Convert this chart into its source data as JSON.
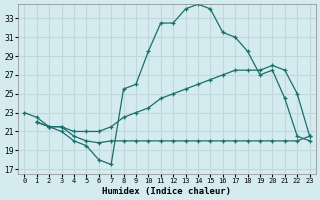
{
  "xlabel": "Humidex (Indice chaleur)",
  "bg_color": "#d4ecf0",
  "grid_color": "#c0d8dc",
  "line_color": "#1a6e6a",
  "xlim": [
    -0.5,
    23.5
  ],
  "ylim": [
    16.5,
    34.5
  ],
  "xticks": [
    0,
    1,
    2,
    3,
    4,
    5,
    6,
    7,
    8,
    9,
    10,
    11,
    12,
    13,
    14,
    15,
    16,
    17,
    18,
    19,
    20,
    21,
    22,
    23
  ],
  "yticks": [
    17,
    19,
    21,
    23,
    25,
    27,
    29,
    31,
    33
  ],
  "line1_x": [
    0,
    1,
    2,
    3,
    4,
    5,
    6,
    7,
    8,
    9,
    10,
    11,
    12,
    13,
    14,
    15,
    16,
    17,
    18,
    19,
    20,
    21,
    22,
    23
  ],
  "line1_y": [
    23.0,
    22.5,
    21.5,
    21.0,
    20.0,
    19.5,
    18.0,
    17.5,
    25.5,
    26.0,
    29.5,
    32.5,
    32.5,
    34.0,
    34.5,
    34.0,
    31.5,
    31.0,
    29.5,
    27.0,
    27.5,
    24.5,
    20.5,
    20.0
  ],
  "line2_x": [
    1,
    2,
    3,
    4,
    5,
    6,
    7,
    8,
    9,
    10,
    11,
    12,
    13,
    14,
    15,
    16,
    17,
    18,
    19,
    20,
    21,
    22,
    23
  ],
  "line2_y": [
    22.0,
    21.5,
    21.5,
    21.0,
    21.0,
    21.0,
    21.5,
    22.5,
    23.0,
    23.5,
    24.5,
    25.0,
    25.5,
    26.0,
    26.5,
    27.0,
    27.5,
    27.5,
    27.5,
    28.0,
    27.5,
    25.0,
    20.5
  ],
  "line3_x": [
    1,
    2,
    3,
    4,
    5,
    6,
    7,
    8,
    9,
    10,
    11,
    12,
    13,
    14,
    15,
    16,
    17,
    18,
    19,
    20,
    21,
    22,
    23
  ],
  "line3_y": [
    22.0,
    21.5,
    21.5,
    20.5,
    20.0,
    19.8,
    20.0,
    20.0,
    20.0,
    20.0,
    20.0,
    20.0,
    20.0,
    20.0,
    20.0,
    20.0,
    20.0,
    20.0,
    20.0,
    20.0,
    20.0,
    20.0,
    20.5
  ]
}
